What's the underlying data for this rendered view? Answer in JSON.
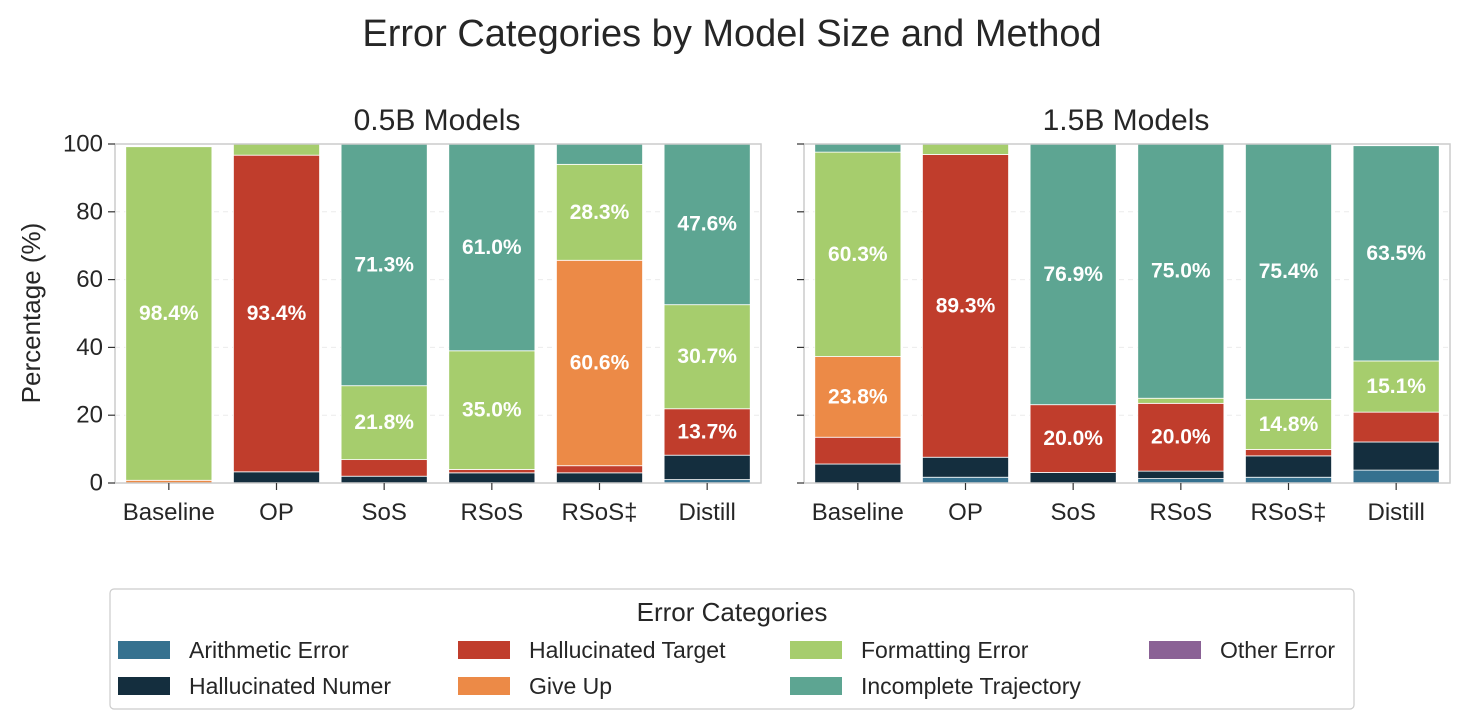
{
  "title": "Error Categories by Model Size and Method",
  "ylabel": "Percentage (%)",
  "y_ticks": [
    "0",
    "20",
    "40",
    "60",
    "80",
    "100"
  ],
  "legend": {
    "title": "Error Categories",
    "items": [
      {
        "label": "Arithmetic Error",
        "color": "#35718f"
      },
      {
        "label": "Hallucinated Numer",
        "color": "#142e3e"
      },
      {
        "label": "Hallucinated Target",
        "color": "#c03d2c"
      },
      {
        "label": "Give Up",
        "color": "#ec8a47"
      },
      {
        "label": "Formatting Error",
        "color": "#a6cd6d"
      },
      {
        "label": "Incomplete Trajectory",
        "color": "#5da592"
      },
      {
        "label": "Other Error",
        "color": "#8a6195"
      }
    ]
  },
  "chart_data": [
    {
      "type": "bar",
      "stacked": true,
      "title": "0.5B Models",
      "ylabel": "Percentage (%)",
      "ylim": [
        0,
        100
      ],
      "grid": true,
      "categories": [
        "Baseline",
        "OP",
        "SoS",
        "RSoS",
        "RSoS‡",
        "Distill"
      ],
      "series": [
        {
          "name": "Arithmetic Error",
          "values": [
            0,
            0,
            0,
            0,
            0,
            1.0
          ]
        },
        {
          "name": "Hallucinated Numer",
          "values": [
            0,
            3.3,
            2.0,
            3.0,
            3.0,
            7.2
          ]
        },
        {
          "name": "Hallucinated Target",
          "values": [
            0,
            93.4,
            4.9,
            1.0,
            2.1,
            13.7
          ]
        },
        {
          "name": "Give Up",
          "values": [
            0.8,
            0,
            0,
            0,
            60.6,
            0
          ]
        },
        {
          "name": "Formatting Error",
          "values": [
            98.4,
            3.3,
            21.8,
            35.0,
            28.3,
            30.7
          ]
        },
        {
          "name": "Incomplete Trajectory",
          "values": [
            0,
            0,
            71.3,
            61.0,
            6.0,
            47.6
          ]
        },
        {
          "name": "Other Error",
          "values": [
            0,
            0,
            0,
            0,
            0,
            0
          ]
        }
      ],
      "data_labels": [
        {
          "category": "Baseline",
          "series": "Formatting Error",
          "text": "98.4%"
        },
        {
          "category": "OP",
          "series": "Hallucinated Target",
          "text": "93.4%"
        },
        {
          "category": "SoS",
          "series": "Formatting Error",
          "text": "21.8%"
        },
        {
          "category": "SoS",
          "series": "Incomplete Trajectory",
          "text": "71.3%"
        },
        {
          "category": "RSoS",
          "series": "Formatting Error",
          "text": "35.0%"
        },
        {
          "category": "RSoS",
          "series": "Incomplete Trajectory",
          "text": "61.0%"
        },
        {
          "category": "RSoS‡",
          "series": "Give Up",
          "text": "60.6%"
        },
        {
          "category": "RSoS‡",
          "series": "Formatting Error",
          "text": "28.3%"
        },
        {
          "category": "Distill",
          "series": "Hallucinated Target",
          "text": "13.7%"
        },
        {
          "category": "Distill",
          "series": "Formatting Error",
          "text": "30.7%"
        },
        {
          "category": "Distill",
          "series": "Incomplete Trajectory",
          "text": "47.6%"
        }
      ]
    },
    {
      "type": "bar",
      "stacked": true,
      "title": "1.5B Models",
      "ylim": [
        0,
        100
      ],
      "grid": true,
      "categories": [
        "Baseline",
        "OP",
        "SoS",
        "RSoS",
        "RSoS‡",
        "Distill"
      ],
      "series": [
        {
          "name": "Arithmetic Error",
          "values": [
            0,
            1.7,
            0,
            1.3,
            1.7,
            3.8
          ]
        },
        {
          "name": "Hallucinated Numer",
          "values": [
            5.6,
            5.9,
            3.1,
            2.2,
            6.3,
            8.3
          ]
        },
        {
          "name": "Hallucinated Target",
          "values": [
            7.9,
            89.3,
            20.0,
            20.0,
            1.9,
            8.8
          ]
        },
        {
          "name": "Give Up",
          "values": [
            23.8,
            0,
            0,
            0,
            0,
            0
          ]
        },
        {
          "name": "Formatting Error",
          "values": [
            60.3,
            3.1,
            0,
            1.5,
            14.8,
            15.1
          ]
        },
        {
          "name": "Incomplete Trajectory",
          "values": [
            2.4,
            0,
            76.9,
            75.0,
            75.4,
            63.5
          ]
        },
        {
          "name": "Other Error",
          "values": [
            0,
            0,
            0,
            0,
            0,
            0
          ]
        }
      ],
      "data_labels": [
        {
          "category": "Baseline",
          "series": "Give Up",
          "text": "23.8%"
        },
        {
          "category": "Baseline",
          "series": "Formatting Error",
          "text": "60.3%"
        },
        {
          "category": "OP",
          "series": "Hallucinated Target",
          "text": "89.3%"
        },
        {
          "category": "SoS",
          "series": "Hallucinated Target",
          "text": "20.0%"
        },
        {
          "category": "SoS",
          "series": "Incomplete Trajectory",
          "text": "76.9%"
        },
        {
          "category": "RSoS",
          "series": "Hallucinated Target",
          "text": "20.0%"
        },
        {
          "category": "RSoS",
          "series": "Incomplete Trajectory",
          "text": "75.0%"
        },
        {
          "category": "RSoS‡",
          "series": "Formatting Error",
          "text": "14.8%"
        },
        {
          "category": "RSoS‡",
          "series": "Incomplete Trajectory",
          "text": "75.4%"
        },
        {
          "category": "Distill",
          "series": "Formatting Error",
          "text": "15.1%"
        },
        {
          "category": "Distill",
          "series": "Incomplete Trajectory",
          "text": "63.5%"
        }
      ]
    }
  ]
}
